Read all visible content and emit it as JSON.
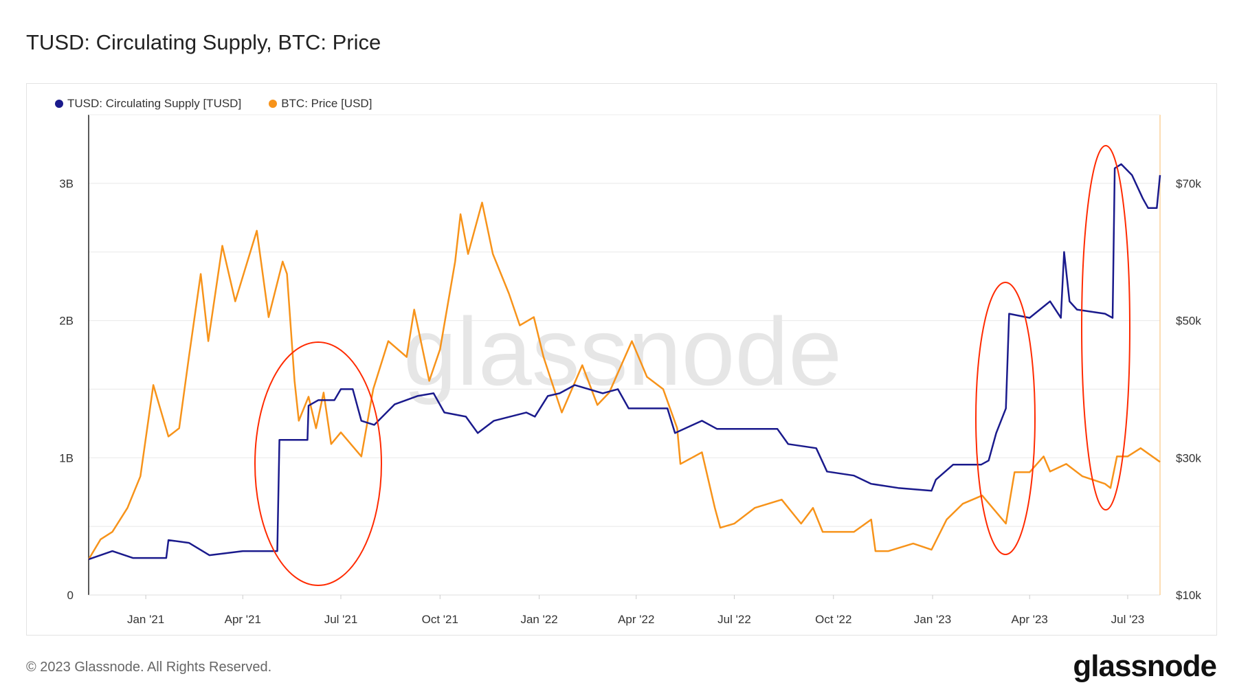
{
  "title": "TUSD: Circulating Supply, BTC: Price",
  "footer": "© 2023 Glassnode. All Rights Reserved.",
  "logo_text": "glassnode",
  "watermark": "glassnode",
  "chart_data": {
    "type": "line",
    "title": "TUSD: Circulating Supply, BTC: Price",
    "x_range": [
      "2020-11-09",
      "2023-07-31"
    ],
    "x_ticks": [
      {
        "date": "2021-01-01",
        "label": "Jan '21"
      },
      {
        "date": "2021-04-01",
        "label": "Apr '21"
      },
      {
        "date": "2021-07-01",
        "label": "Jul '21"
      },
      {
        "date": "2021-10-01",
        "label": "Oct '21"
      },
      {
        "date": "2022-01-01",
        "label": "Jan '22"
      },
      {
        "date": "2022-04-01",
        "label": "Apr '22"
      },
      {
        "date": "2022-07-01",
        "label": "Jul '22"
      },
      {
        "date": "2022-10-01",
        "label": "Oct '22"
      },
      {
        "date": "2023-01-01",
        "label": "Jan '23"
      },
      {
        "date": "2023-04-01",
        "label": "Apr '23"
      },
      {
        "date": "2023-07-01",
        "label": "Jul '23"
      }
    ],
    "y_left": {
      "range": [
        0,
        3.5
      ],
      "unit": "B",
      "ticks": [
        {
          "value": 0,
          "label": "0"
        },
        {
          "value": 1,
          "label": "1B"
        },
        {
          "value": 2,
          "label": "2B"
        },
        {
          "value": 3,
          "label": "3B"
        }
      ]
    },
    "y_right": {
      "range": [
        10000,
        80000
      ],
      "ticks": [
        {
          "value": 10000,
          "label": "$10k"
        },
        {
          "value": 30000,
          "label": "$30k"
        },
        {
          "value": 50000,
          "label": "$50k"
        },
        {
          "value": 70000,
          "label": "$70k"
        }
      ]
    },
    "grid": true,
    "legend_position": "top-left",
    "series": [
      {
        "name": "TUSD: Circulating Supply [TUSD]",
        "axis": "left",
        "color": "#1a1a8c",
        "points": [
          [
            "2020-11-09",
            0.26
          ],
          [
            "2020-12-01",
            0.32
          ],
          [
            "2020-12-20",
            0.27
          ],
          [
            "2021-01-20",
            0.27
          ],
          [
            "2021-01-22",
            0.4
          ],
          [
            "2021-02-10",
            0.38
          ],
          [
            "2021-03-01",
            0.29
          ],
          [
            "2021-04-01",
            0.32
          ],
          [
            "2021-04-20",
            0.32
          ],
          [
            "2021-05-03",
            0.32
          ],
          [
            "2021-05-05",
            1.13
          ],
          [
            "2021-05-31",
            1.13
          ],
          [
            "2021-06-01",
            1.38
          ],
          [
            "2021-06-10",
            1.42
          ],
          [
            "2021-06-25",
            1.42
          ],
          [
            "2021-07-01",
            1.5
          ],
          [
            "2021-07-12",
            1.5
          ],
          [
            "2021-07-20",
            1.27
          ],
          [
            "2021-08-01",
            1.24
          ],
          [
            "2021-08-20",
            1.39
          ],
          [
            "2021-09-10",
            1.45
          ],
          [
            "2021-09-25",
            1.47
          ],
          [
            "2021-10-05",
            1.33
          ],
          [
            "2021-10-25",
            1.3
          ],
          [
            "2021-11-05",
            1.18
          ],
          [
            "2021-11-20",
            1.27
          ],
          [
            "2021-12-20",
            1.33
          ],
          [
            "2021-12-28",
            1.3
          ],
          [
            "2022-01-09",
            1.45
          ],
          [
            "2022-01-20",
            1.47
          ],
          [
            "2022-02-03",
            1.53
          ],
          [
            "2022-03-01",
            1.47
          ],
          [
            "2022-03-15",
            1.5
          ],
          [
            "2022-03-25",
            1.36
          ],
          [
            "2022-04-30",
            1.36
          ],
          [
            "2022-05-07",
            1.18
          ],
          [
            "2022-06-01",
            1.27
          ],
          [
            "2022-06-15",
            1.21
          ],
          [
            "2022-07-15",
            1.21
          ],
          [
            "2022-08-10",
            1.21
          ],
          [
            "2022-08-20",
            1.1
          ],
          [
            "2022-09-15",
            1.07
          ],
          [
            "2022-09-25",
            0.9
          ],
          [
            "2022-10-20",
            0.87
          ],
          [
            "2022-11-05",
            0.81
          ],
          [
            "2022-11-30",
            0.78
          ],
          [
            "2022-12-31",
            0.76
          ],
          [
            "2023-01-04",
            0.84
          ],
          [
            "2023-01-20",
            0.95
          ],
          [
            "2023-02-15",
            0.95
          ],
          [
            "2023-02-22",
            0.98
          ],
          [
            "2023-03-01",
            1.18
          ],
          [
            "2023-03-10",
            1.36
          ],
          [
            "2023-03-13",
            2.05
          ],
          [
            "2023-04-01",
            2.02
          ],
          [
            "2023-04-20",
            2.14
          ],
          [
            "2023-04-30",
            2.02
          ],
          [
            "2023-05-03",
            2.5
          ],
          [
            "2023-05-08",
            2.14
          ],
          [
            "2023-05-15",
            2.08
          ],
          [
            "2023-06-10",
            2.05
          ],
          [
            "2023-06-17",
            2.02
          ],
          [
            "2023-06-19",
            3.11
          ],
          [
            "2023-06-25",
            3.14
          ],
          [
            "2023-07-05",
            3.06
          ],
          [
            "2023-07-15",
            2.89
          ],
          [
            "2023-07-20",
            2.82
          ],
          [
            "2023-07-28",
            2.82
          ],
          [
            "2023-07-31",
            3.06
          ]
        ]
      },
      {
        "name": "BTC: Price [USD]",
        "axis": "right",
        "color": "#f7931a",
        "points": [
          [
            "2020-11-09",
            15200
          ],
          [
            "2020-11-20",
            18100
          ],
          [
            "2020-12-01",
            19200
          ],
          [
            "2020-12-15",
            22700
          ],
          [
            "2020-12-27",
            27300
          ],
          [
            "2021-01-08",
            40600
          ],
          [
            "2021-01-22",
            33100
          ],
          [
            "2021-02-01",
            34300
          ],
          [
            "2021-02-10",
            44700
          ],
          [
            "2021-02-21",
            56800
          ],
          [
            "2021-02-28",
            47000
          ],
          [
            "2021-03-13",
            60900
          ],
          [
            "2021-03-25",
            52800
          ],
          [
            "2021-04-14",
            63100
          ],
          [
            "2021-04-25",
            50500
          ],
          [
            "2021-05-08",
            58600
          ],
          [
            "2021-05-12",
            56800
          ],
          [
            "2021-05-19",
            41200
          ],
          [
            "2021-05-23",
            35400
          ],
          [
            "2021-06-01",
            38900
          ],
          [
            "2021-06-08",
            34300
          ],
          [
            "2021-06-15",
            39500
          ],
          [
            "2021-06-22",
            32000
          ],
          [
            "2021-07-01",
            33700
          ],
          [
            "2021-07-20",
            30200
          ],
          [
            "2021-07-31",
            40000
          ],
          [
            "2021-08-14",
            47000
          ],
          [
            "2021-08-31",
            44700
          ],
          [
            "2021-09-07",
            51600
          ],
          [
            "2021-09-21",
            41200
          ],
          [
            "2021-10-01",
            45800
          ],
          [
            "2021-10-15",
            58600
          ],
          [
            "2021-10-20",
            65500
          ],
          [
            "2021-10-27",
            59700
          ],
          [
            "2021-11-09",
            67200
          ],
          [
            "2021-11-19",
            59700
          ],
          [
            "2021-12-04",
            53900
          ],
          [
            "2021-12-14",
            49300
          ],
          [
            "2021-12-27",
            50500
          ],
          [
            "2022-01-05",
            44700
          ],
          [
            "2022-01-22",
            36600
          ],
          [
            "2022-02-10",
            43500
          ],
          [
            "2022-02-24",
            37700
          ],
          [
            "2022-03-07",
            39500
          ],
          [
            "2022-03-28",
            47000
          ],
          [
            "2022-04-11",
            41800
          ],
          [
            "2022-04-26",
            40000
          ],
          [
            "2022-05-09",
            34300
          ],
          [
            "2022-05-12",
            29100
          ],
          [
            "2022-06-01",
            30800
          ],
          [
            "2022-06-13",
            22700
          ],
          [
            "2022-06-18",
            19800
          ],
          [
            "2022-07-01",
            20400
          ],
          [
            "2022-07-20",
            22700
          ],
          [
            "2022-08-14",
            23900
          ],
          [
            "2022-09-01",
            20400
          ],
          [
            "2022-09-12",
            22700
          ],
          [
            "2022-09-21",
            19200
          ],
          [
            "2022-10-01",
            19200
          ],
          [
            "2022-10-20",
            19200
          ],
          [
            "2022-11-05",
            21000
          ],
          [
            "2022-11-09",
            16400
          ],
          [
            "2022-11-21",
            16400
          ],
          [
            "2022-12-14",
            17500
          ],
          [
            "2022-12-31",
            16600
          ],
          [
            "2023-01-14",
            21000
          ],
          [
            "2023-01-29",
            23300
          ],
          [
            "2023-02-16",
            24500
          ],
          [
            "2023-03-10",
            20400
          ],
          [
            "2023-03-18",
            27900
          ],
          [
            "2023-04-01",
            27900
          ],
          [
            "2023-04-14",
            30200
          ],
          [
            "2023-04-20",
            28000
          ],
          [
            "2023-05-05",
            29100
          ],
          [
            "2023-05-20",
            27300
          ],
          [
            "2023-06-10",
            26200
          ],
          [
            "2023-06-15",
            25600
          ],
          [
            "2023-06-21",
            30200
          ],
          [
            "2023-07-01",
            30200
          ],
          [
            "2023-07-13",
            31400
          ],
          [
            "2023-07-31",
            29400
          ]
        ]
      }
    ],
    "annotations": [
      {
        "type": "ellipse",
        "color": "#ff2a00",
        "date_center": "2021-06-15"
      },
      {
        "type": "ellipse",
        "color": "#ff2a00",
        "date_center": "2023-03-13"
      },
      {
        "type": "ellipse",
        "color": "#ff2a00",
        "date_center": "2023-06-19"
      }
    ]
  }
}
